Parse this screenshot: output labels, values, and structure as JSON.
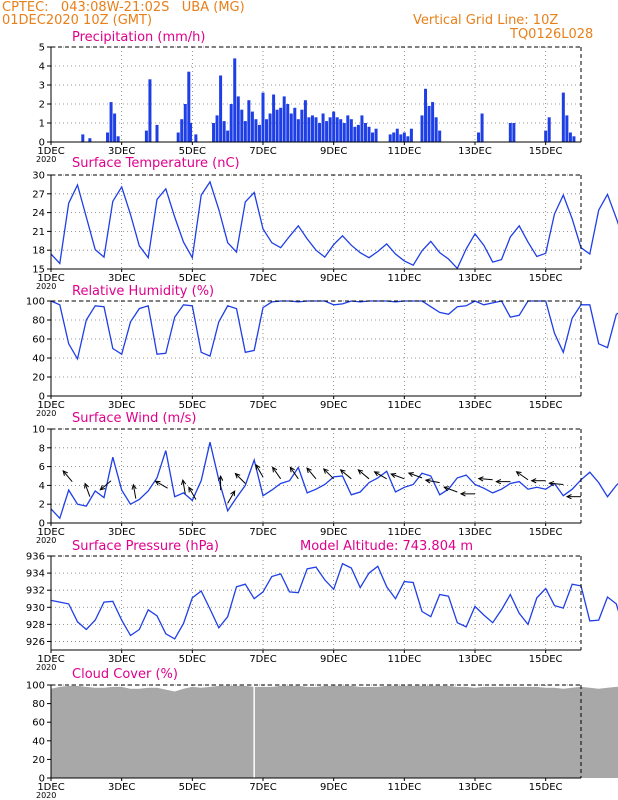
{
  "header": {
    "line1_left": "CPTEC:   043:08W-21:02S   UBA (MG)",
    "line2_left": "01DEC2020 10Z (GMT)",
    "line1_right": "Vertical Grid Line: 10Z",
    "line2_right": "TQ0126L028"
  },
  "colors": {
    "header": "#e8801a",
    "title": "#e0008c",
    "series": "#1f3fe6",
    "cloud": "#a8a8a8",
    "arrow": "#000000"
  },
  "x_ticks": [
    "1DEC",
    "3DEC",
    "5DEC",
    "7DEC",
    "9DEC",
    "11DEC",
    "13DEC",
    "15DEC"
  ],
  "x_tick_positions_days": [
    0,
    2,
    4,
    6,
    8,
    10,
    12,
    14
  ],
  "x_range_days": [
    0,
    15
  ],
  "year_label": "2020",
  "chart_data": [
    {
      "id": "precip",
      "type": "bar",
      "title": "Precipitation (mm/h)",
      "ylim": [
        0,
        5
      ],
      "yticks": [
        0,
        1,
        2,
        3,
        4,
        5
      ],
      "x": [
        0.9,
        1.1,
        1.6,
        1.7,
        1.8,
        1.9,
        2.7,
        2.8,
        3.0,
        3.6,
        3.7,
        3.8,
        3.9,
        3.95,
        4.1,
        4.6,
        4.7,
        4.8,
        4.9,
        5.0,
        5.1,
        5.2,
        5.3,
        5.4,
        5.5,
        5.6,
        5.7,
        5.8,
        5.9,
        6.0,
        6.1,
        6.2,
        6.3,
        6.4,
        6.5,
        6.6,
        6.7,
        6.8,
        6.9,
        7.0,
        7.1,
        7.2,
        7.3,
        7.4,
        7.5,
        7.6,
        7.7,
        7.8,
        7.9,
        8.0,
        8.1,
        8.2,
        8.3,
        8.4,
        8.5,
        8.6,
        8.7,
        8.8,
        8.9,
        9.0,
        9.1,
        9.2,
        9.6,
        9.7,
        9.8,
        9.9,
        10.0,
        10.1,
        10.2,
        10.5,
        10.6,
        10.7,
        10.8,
        10.9,
        11.0,
        12.1,
        12.2,
        13.0,
        13.1,
        14.0,
        14.1,
        14.5,
        14.6,
        14.7,
        14.8
      ],
      "values": [
        0.4,
        0.2,
        0.5,
        2.1,
        1.5,
        0.3,
        0.6,
        3.3,
        0.9,
        0.5,
        1.2,
        2.0,
        3.7,
        1.0,
        0.4,
        1.0,
        1.4,
        3.5,
        1.1,
        0.6,
        2.0,
        4.4,
        2.4,
        1.7,
        1.1,
        2.2,
        1.6,
        1.2,
        0.9,
        2.6,
        1.2,
        1.5,
        2.5,
        1.7,
        1.8,
        2.4,
        2.0,
        1.5,
        1.8,
        1.2,
        1.7,
        2.2,
        1.3,
        1.4,
        1.3,
        1.0,
        1.5,
        1.1,
        1.3,
        1.6,
        1.3,
        1.2,
        1.0,
        1.4,
        1.2,
        0.8,
        0.9,
        1.4,
        1.0,
        0.8,
        0.5,
        0.7,
        0.4,
        0.5,
        0.7,
        0.4,
        0.5,
        0.3,
        0.7,
        1.4,
        2.8,
        1.9,
        2.1,
        1.3,
        0.6,
        0.5,
        1.5,
        1.0,
        1.0,
        0.6,
        1.3,
        2.6,
        1.4,
        0.5,
        0.3
      ]
    },
    {
      "id": "temp",
      "type": "line",
      "title": "Surface Temperature (nC)",
      "ylim": [
        15,
        30
      ],
      "yticks": [
        15,
        18,
        21,
        24,
        27,
        30
      ],
      "step_hours": 6,
      "values": [
        17.4,
        15.9,
        25.5,
        28.4,
        23.3,
        18.1,
        16.9,
        25.8,
        28.1,
        23.7,
        18.7,
        16.8,
        26.1,
        27.8,
        23.3,
        19.3,
        16.8,
        26.8,
        28.9,
        24.5,
        19.2,
        17.7,
        25.7,
        27.2,
        21.4,
        19.2,
        18.4,
        20.2,
        21.9,
        19.8,
        18.0,
        16.9,
        18.9,
        20.3,
        18.8,
        17.6,
        16.8,
        17.8,
        19.0,
        17.4,
        16.3,
        15.6,
        17.9,
        19.4,
        17.6,
        16.6,
        15.1,
        18.2,
        20.6,
        18.8,
        16.1,
        16.5,
        20.1,
        21.9,
        19.3,
        17.0,
        17.5,
        23.8,
        26.8,
        23.0,
        18.4,
        17.4,
        24.4,
        26.9,
        23.1,
        19.0,
        18.6,
        24.4,
        27.2,
        23.8,
        20.4,
        21.0,
        25.4,
        22.8
      ]
    },
    {
      "id": "rh",
      "type": "line",
      "title": "Relative Humidity (%)",
      "ylim": [
        0,
        100
      ],
      "yticks": [
        0,
        20,
        40,
        60,
        80,
        100
      ],
      "step_hours": 6,
      "values": [
        100,
        96,
        55,
        39,
        80,
        95,
        94,
        50,
        44,
        78,
        92,
        95,
        44,
        45,
        83,
        96,
        95,
        46,
        42,
        78,
        95,
        92,
        46,
        48,
        93,
        99,
        100,
        100,
        99,
        100,
        100,
        100,
        96,
        97,
        100,
        99,
        100,
        100,
        100,
        99,
        100,
        100,
        100,
        94,
        88,
        86,
        94,
        95,
        100,
        96,
        98,
        100,
        83,
        85,
        100,
        100,
        100,
        66,
        46,
        82,
        96,
        96,
        55,
        51,
        86,
        92,
        93,
        52,
        46,
        80,
        91,
        85,
        62,
        79
      ]
    },
    {
      "id": "wind",
      "type": "line",
      "title": "Surface Wind (m/s)",
      "ylim": [
        0,
        10
      ],
      "yticks": [
        0,
        2,
        4,
        6,
        8,
        10
      ],
      "step_hours": 6,
      "values": [
        1.5,
        0.5,
        3.5,
        2.0,
        1.8,
        3.4,
        2.7,
        7.0,
        3.5,
        2.0,
        2.5,
        3.4,
        4.8,
        7.7,
        2.8,
        3.2,
        2.4,
        4.5,
        8.6,
        4.6,
        1.3,
        2.7,
        4.0,
        6.7,
        2.9,
        3.5,
        4.2,
        4.5,
        5.9,
        3.2,
        3.6,
        4.1,
        4.9,
        5.0,
        3.0,
        3.3,
        4.3,
        4.8,
        5.5,
        3.3,
        3.8,
        4.1,
        5.3,
        5.0,
        3.0,
        3.6,
        4.8,
        5.1,
        4.1,
        3.7,
        3.2,
        3.6,
        4.2,
        4.4,
        3.6,
        3.8,
        3.6,
        4.2,
        2.9,
        3.6,
        4.6,
        5.4,
        4.3,
        2.8,
        4.0,
        4.9,
        5.4,
        3.8,
        2.8,
        3.8,
        4.3,
        5.1,
        3.9,
        3.7
      ],
      "arrows": {
        "x_days": [
          0.6,
          1.1,
          1.7,
          2.4,
          3.3,
          3.8,
          4.1,
          4.8,
          5.0,
          5.5,
          6.0,
          6.5,
          7.0,
          7.5,
          8.0,
          8.5,
          9.0,
          9.5,
          10.0,
          10.5,
          11.0,
          11.5,
          12.0,
          12.5,
          13.0,
          13.5,
          14.0,
          14.5,
          15.0
        ],
        "y_values": [
          4.4,
          2.8,
          4.5,
          2.6,
          3.7,
          3.1,
          2.5,
          3.5,
          2.1,
          4.2,
          4.9,
          4.7,
          4.7,
          4.7,
          4.7,
          4.7,
          4.7,
          4.7,
          4.7,
          4.8,
          4.3,
          3.3,
          3.1,
          4.6,
          4.4,
          4.6,
          4.5,
          4.1,
          2.8
        ],
        "angles_deg": [
          230,
          250,
          140,
          260,
          210,
          260,
          240,
          270,
          300,
          225,
          240,
          235,
          235,
          230,
          225,
          220,
          220,
          210,
          200,
          200,
          190,
          200,
          180,
          185,
          180,
          215,
          180,
          185,
          180
        ]
      }
    },
    {
      "id": "pressure",
      "type": "line",
      "title": "Surface Pressure (hPa)",
      "subtitle": "Model Altitude: 743.804  m",
      "ylim": [
        925,
        936
      ],
      "yticks": [
        926,
        928,
        930,
        932,
        934,
        936
      ],
      "step_hours": 6,
      "values": [
        930.8,
        930.6,
        930.4,
        928.3,
        927.4,
        928.5,
        930.6,
        930.7,
        928.5,
        926.7,
        927.4,
        929.7,
        929.0,
        926.9,
        926.3,
        928.1,
        931.1,
        931.9,
        929.8,
        927.6,
        928.9,
        932.4,
        932.7,
        931.0,
        931.8,
        933.6,
        933.9,
        931.8,
        931.7,
        934.5,
        934.7,
        933.2,
        932.1,
        935.1,
        934.6,
        932.3,
        934.0,
        934.8,
        932.4,
        931.0,
        933.0,
        932.9,
        929.5,
        928.9,
        931.5,
        931.3,
        928.2,
        927.7,
        930.1,
        929.1,
        928.2,
        929.7,
        931.5,
        929.3,
        928.0,
        931.1,
        932.2,
        930.2,
        929.9,
        932.7,
        932.5,
        928.4,
        928.5,
        931.2,
        930.4,
        926.9,
        927.2,
        929.8,
        929.3,
        926.3,
        927.8,
        930.3,
        928.0,
        929.3
      ]
    },
    {
      "id": "cloud",
      "type": "area",
      "title": "Cloud Cover (%)",
      "ylim": [
        0,
        100
      ],
      "yticks": [
        0,
        20,
        40,
        60,
        80,
        100
      ],
      "step_hours": 6,
      "values": [
        96,
        98,
        99,
        99,
        98,
        97,
        97,
        98,
        98,
        96,
        96,
        97,
        97,
        95,
        93,
        96,
        98,
        97,
        98,
        99,
        99,
        99,
        99,
        98,
        98,
        98,
        99,
        99,
        99,
        98,
        98,
        99,
        99,
        99,
        99,
        98,
        98,
        98,
        99,
        99,
        99,
        99,
        99,
        99,
        99,
        99,
        98,
        98,
        97,
        98,
        98,
        98,
        98,
        98,
        98,
        98,
        97,
        97,
        96,
        97,
        98,
        97,
        96,
        97,
        98,
        98,
        98,
        97,
        98,
        98,
        98,
        98,
        98,
        98
      ],
      "gap_day": 5.75
    }
  ]
}
